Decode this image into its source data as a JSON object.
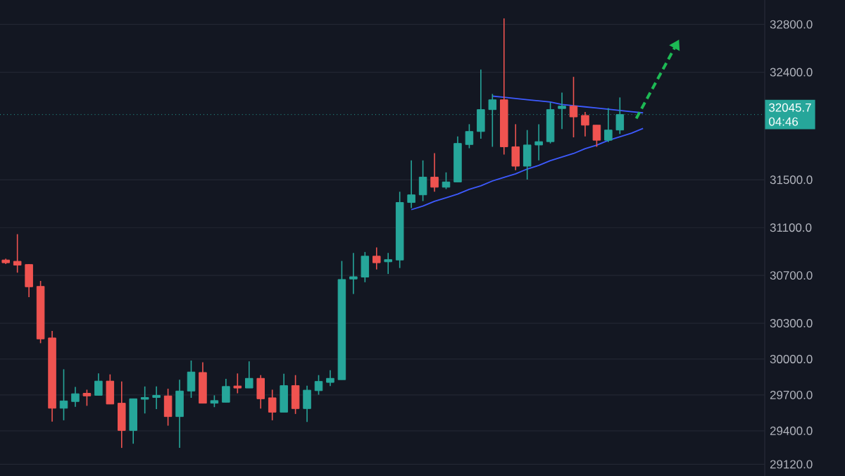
{
  "chart_data": {
    "type": "candlestick",
    "categories": [
      null,
      null,
      null,
      null,
      null,
      null,
      null,
      null,
      null,
      null,
      null,
      null,
      null,
      null,
      null,
      null,
      null,
      null,
      null,
      null,
      null,
      null,
      null,
      null,
      null,
      null,
      null,
      null,
      null,
      null,
      null,
      null,
      null,
      null,
      null,
      null,
      null,
      null,
      null,
      null,
      null,
      null,
      null,
      null,
      null,
      null,
      null,
      null,
      null,
      null,
      null,
      null,
      null,
      null,
      null,
      null,
      null,
      null,
      null,
      null,
      null,
      null,
      null,
      null,
      null,
      null
    ],
    "ohlc": [
      [
        30829,
        30840,
        30795,
        30806
      ],
      [
        30818,
        31045,
        30723,
        30786
      ],
      [
        30791,
        30795,
        30518,
        30605
      ],
      [
        30608,
        30654,
        30133,
        30169
      ],
      [
        30177,
        30235,
        29477,
        29589
      ],
      [
        29589,
        29915,
        29488,
        29650
      ],
      [
        29645,
        29767,
        29601,
        29710
      ],
      [
        29714,
        29744,
        29609,
        29692
      ],
      [
        29697,
        29880,
        29697,
        29816
      ],
      [
        29816,
        29872,
        29624,
        29624
      ],
      [
        29631,
        29813,
        29257,
        29403
      ],
      [
        29403,
        29668,
        29292,
        29668
      ],
      [
        29664,
        29771,
        29545,
        29679
      ],
      [
        29679,
        29771,
        29582,
        29697
      ],
      [
        29692,
        29752,
        29443,
        29519
      ],
      [
        29519,
        29828,
        29257,
        29733
      ],
      [
        29733,
        29988,
        29676,
        29892
      ],
      [
        29888,
        29973,
        29631,
        29631
      ],
      [
        29631,
        29697,
        29598,
        29653
      ],
      [
        29639,
        29835,
        29639,
        29771
      ],
      [
        29775,
        29880,
        29714,
        29758
      ],
      [
        29758,
        29981,
        29758,
        29839
      ],
      [
        29839,
        29866,
        29586,
        29668
      ],
      [
        29676,
        29744,
        29488,
        29556
      ],
      [
        29556,
        29877,
        29556,
        29778
      ],
      [
        29778,
        29866,
        29541,
        29586
      ],
      [
        29586,
        29778,
        29474,
        29740
      ],
      [
        29736,
        29866,
        29702,
        29813
      ],
      [
        29805,
        29907,
        29775,
        29839
      ],
      [
        29828,
        30821,
        29828,
        30666
      ],
      [
        30670,
        30888,
        30545,
        30689
      ],
      [
        30686,
        30896,
        30643,
        30861
      ],
      [
        30861,
        30934,
        30750,
        30806
      ],
      [
        30814,
        30888,
        30712,
        30832
      ],
      [
        30829,
        31400,
        30762,
        31310
      ],
      [
        31310,
        31662,
        31263,
        31374
      ],
      [
        31374,
        31662,
        31322,
        31522
      ],
      [
        31522,
        31723,
        31400,
        31438
      ],
      [
        31438,
        31562,
        31422,
        31482
      ],
      [
        31482,
        31863,
        31482,
        31804
      ],
      [
        31795,
        31965,
        31764,
        31904
      ],
      [
        31904,
        32422,
        31843,
        32087
      ],
      [
        32087,
        32218,
        31776,
        32169
      ],
      [
        32169,
        32850,
        31711,
        31776
      ],
      [
        31776,
        31965,
        31580,
        31614
      ],
      [
        31614,
        31916,
        31502,
        31791
      ],
      [
        31791,
        31965,
        31662,
        31819
      ],
      [
        31819,
        32148,
        31804,
        32087
      ],
      [
        32096,
        32230,
        31925,
        32116
      ],
      [
        32116,
        32361,
        31855,
        32026
      ],
      [
        32038,
        32067,
        31863,
        31957
      ],
      [
        31957,
        31957,
        31776,
        31831
      ],
      [
        31831,
        32100,
        31815,
        31916
      ],
      [
        31916,
        32189,
        31883,
        32046
      ],
      null,
      null,
      null,
      null,
      null,
      null,
      null,
      null,
      null,
      null,
      null,
      null
    ],
    "colors": [
      "#ef5350",
      "#ef5350",
      "#ef5350",
      "#ef5350",
      "#ef5350",
      "#26a69a",
      "#26a69a",
      "#ef5350",
      "#26a69a",
      "#ef5350",
      "#ef5350",
      "#26a69a",
      "#26a69a",
      "#26a69a",
      "#ef5350",
      "#26a69a",
      "#26a69a",
      "#ef5350",
      "#26a69a",
      "#26a69a",
      "#ef5350",
      "#26a69a",
      "#ef5350",
      "#ef5350",
      "#26a69a",
      "#ef5350",
      "#26a69a",
      "#26a69a",
      "#26a69a",
      "#26a69a",
      "#26a69a",
      "#26a69a",
      "#ef5350",
      "#26a69a",
      "#26a69a",
      "#26a69a",
      "#26a69a",
      "#ef5350",
      "#26a69a",
      "#26a69a",
      "#26a69a",
      "#26a69a",
      "#26a69a",
      "#ef5350",
      "#ef5350",
      "#26a69a",
      "#26a69a",
      "#26a69a",
      "#26a69a",
      "#ef5350",
      "#ef5350",
      "#ef5350",
      "#26a69a",
      "#26a69a",
      null,
      null,
      null,
      null,
      null,
      null,
      null,
      null,
      null,
      null,
      null,
      null
    ],
    "series": [
      {
        "type": "line",
        "color": "#3d5afe",
        "values": [
          null,
          null,
          null,
          null,
          null,
          null,
          null,
          null,
          null,
          null,
          null,
          null,
          null,
          null,
          null,
          null,
          null,
          null,
          null,
          null,
          null,
          null,
          null,
          null,
          null,
          null,
          null,
          null,
          null,
          null,
          null,
          null,
          null,
          null,
          null,
          null,
          null,
          null,
          null,
          null,
          null,
          null,
          32200,
          32190,
          32180,
          32170,
          32160,
          32150,
          32130,
          32120,
          32110,
          32100,
          32090,
          32080,
          32070,
          32060,
          null,
          null,
          null,
          null,
          null,
          null,
          null,
          null,
          null,
          null
        ]
      },
      {
        "type": "line",
        "color": "#3d5afe",
        "values": [
          null,
          null,
          null,
          null,
          null,
          null,
          null,
          null,
          null,
          null,
          null,
          null,
          null,
          null,
          null,
          null,
          null,
          null,
          null,
          null,
          null,
          null,
          null,
          null,
          null,
          null,
          null,
          null,
          null,
          null,
          null,
          null,
          null,
          null,
          null,
          31250,
          31280,
          31320,
          31350,
          31380,
          31420,
          31450,
          31490,
          31520,
          31550,
          31590,
          31620,
          31660,
          31690,
          31720,
          31760,
          31790,
          31830,
          31860,
          31890,
          31930,
          null,
          null,
          null,
          null,
          null,
          null,
          null,
          null,
          null,
          null
        ]
      }
    ],
    "ylim": [
      29022,
      33004
    ],
    "yticks": [
      {
        "value": 29120,
        "label": "29120.0"
      },
      {
        "value": 29400,
        "label": "29400.0"
      },
      {
        "value": 29700,
        "label": "29700.0"
      },
      {
        "value": 30000,
        "label": "30000.0"
      },
      {
        "value": 30300,
        "label": "30300.0"
      },
      {
        "value": 30700,
        "label": "30700.0"
      },
      {
        "value": 31100,
        "label": "31100.0"
      },
      {
        "value": 31500,
        "label": "31500.0"
      },
      {
        "value": 32400,
        "label": "32400.0"
      },
      {
        "value": 32800,
        "label": "32800.0"
      }
    ],
    "grid": "y",
    "ref_lines": [
      {
        "axis": "y",
        "value": 32045.7,
        "label": "32045.7",
        "color": "#26a69a",
        "line_style": "dotted"
      }
    ],
    "annotations": [
      "04:46"
    ]
  }
}
